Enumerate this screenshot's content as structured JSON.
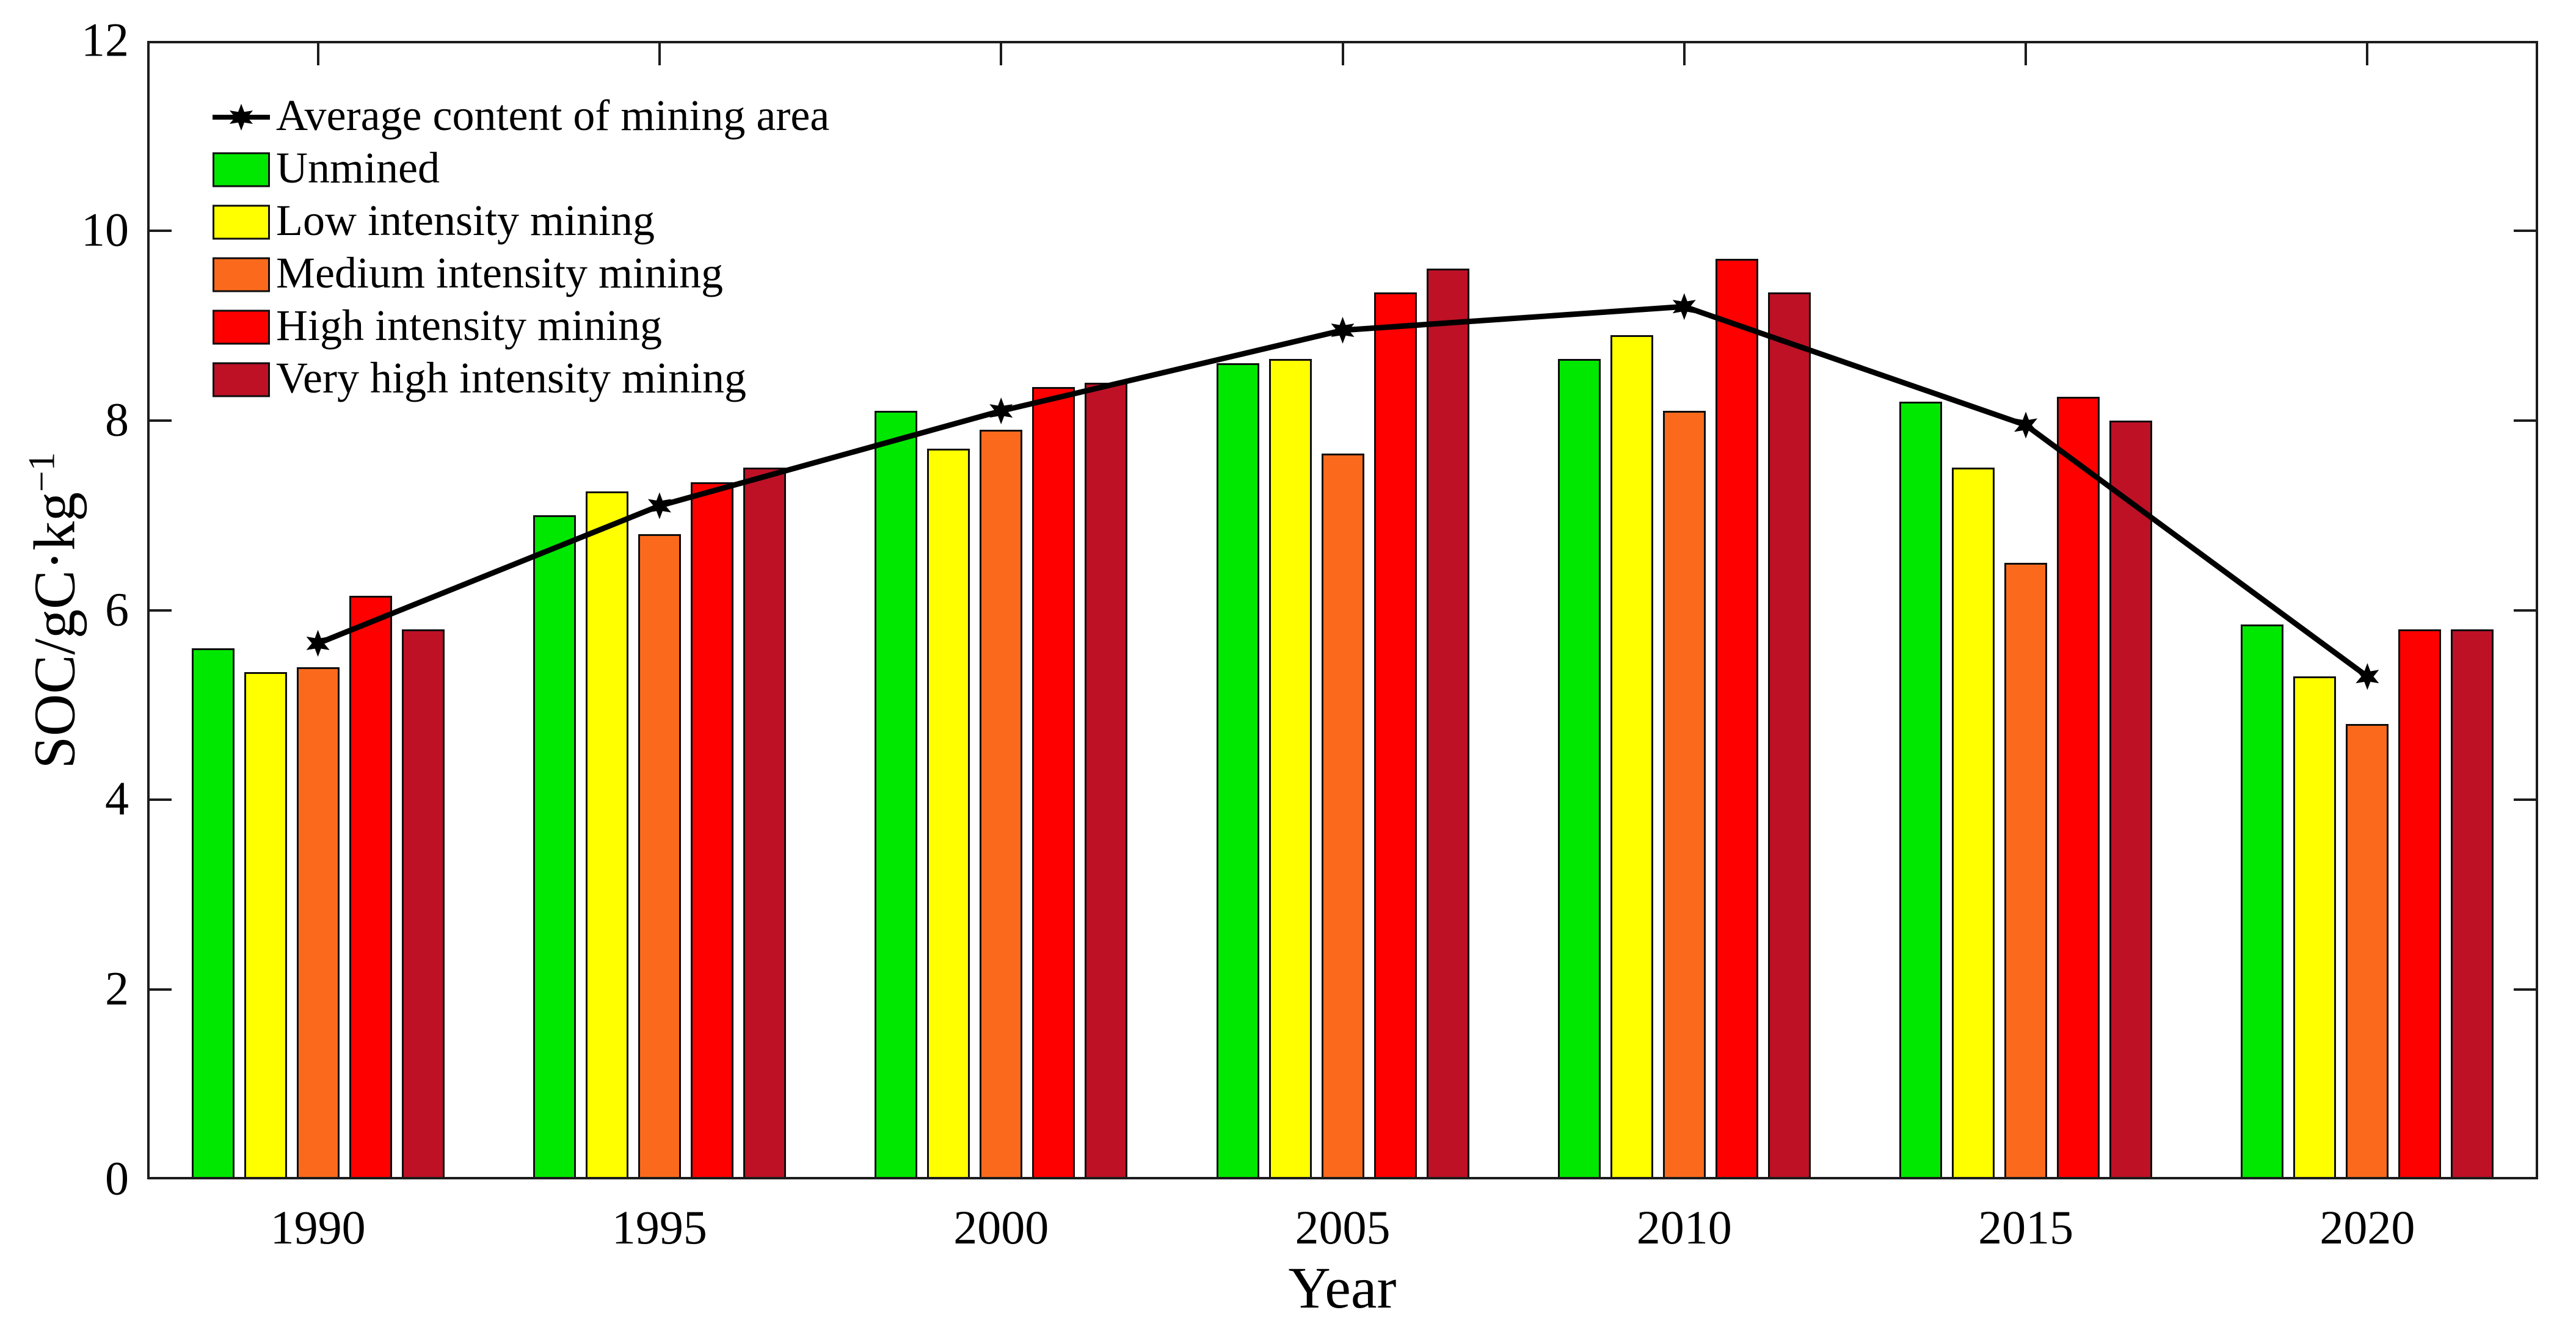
{
  "figure": {
    "background": "#ffffff",
    "axis_color": "#1c1c1c",
    "bar_outline_color": "#0d0d0d"
  },
  "chart_data": {
    "type": "bar",
    "title": "",
    "xlabel": "Year",
    "ylabel": "SOC/gC·kg",
    "ylabel_superscript": "−1",
    "ylim": [
      0,
      12
    ],
    "ytick_step": 2,
    "grid": false,
    "legend_position": "top-left",
    "categories": [
      "1990",
      "1995",
      "2000",
      "2005",
      "2010",
      "2015",
      "2020"
    ],
    "series": [
      {
        "name": "Unmined",
        "color": "#00e800",
        "values": [
          5.6,
          7.0,
          8.1,
          8.6,
          8.65,
          8.2,
          5.85
        ]
      },
      {
        "name": "Low intensity mining",
        "color": "#ffff00",
        "values": [
          5.35,
          7.25,
          7.7,
          8.65,
          8.9,
          7.5,
          5.3
        ]
      },
      {
        "name": "Medium intensity mining",
        "color": "#fb6a1c",
        "values": [
          5.4,
          6.8,
          7.9,
          7.65,
          8.1,
          6.5,
          4.8
        ]
      },
      {
        "name": "High intensity mining",
        "color": "#ff0000",
        "values": [
          6.15,
          7.35,
          8.35,
          9.35,
          9.7,
          8.25,
          5.8
        ]
      },
      {
        "name": "Very high intensity mining",
        "color": "#be1126",
        "values": [
          5.8,
          7.5,
          8.4,
          9.6,
          9.35,
          8.0,
          5.8
        ]
      }
    ],
    "line_series": {
      "name": "Average content of mining area",
      "color": "#000000",
      "marker": "hexagram-star",
      "values": [
        5.65,
        7.1,
        8.1,
        8.95,
        9.2,
        7.95,
        5.3
      ]
    }
  }
}
